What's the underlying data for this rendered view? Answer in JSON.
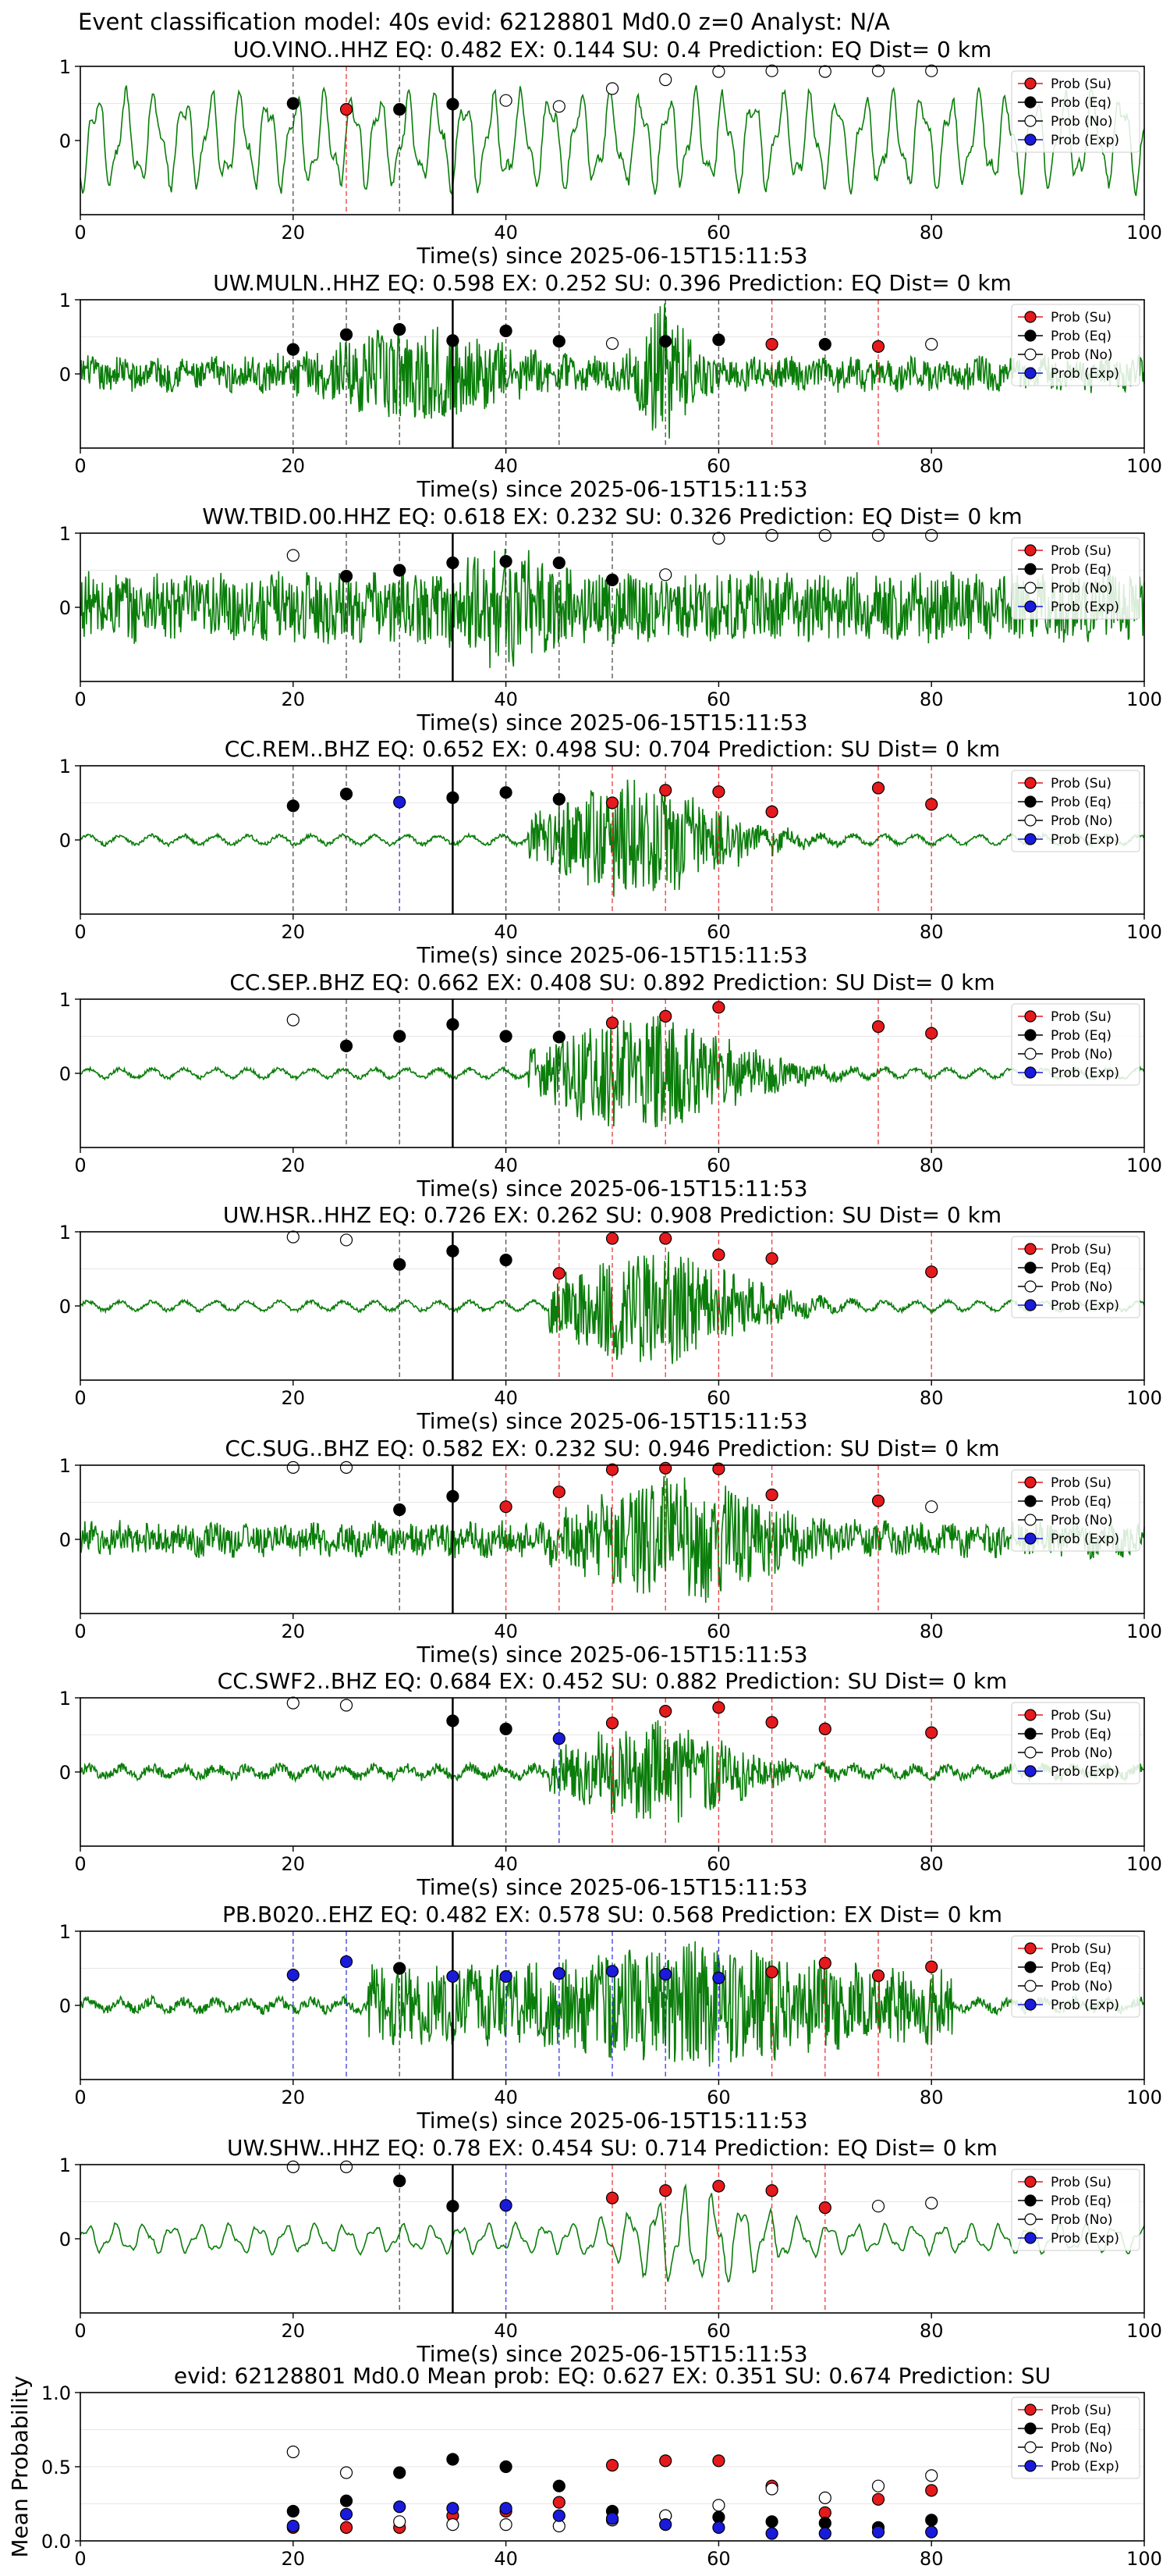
{
  "figure_title": "Event classification model: 40s evid: 62128801 Md0.0 z=0 Analyst: N/A",
  "legend": {
    "su": "Prob (Su)",
    "eq": "Prob (Eq)",
    "no": "Prob (No)",
    "exp": "Prob (Exp)"
  },
  "colors": {
    "su": "#e41a1c",
    "eq": "#000000",
    "no": "#ffffff",
    "exp": "#1a1adb",
    "trace": "#0a7d0a",
    "onset": "#000000"
  },
  "chart_data": [
    {
      "type": "line",
      "title": "UO.VINO..HHZ   EQ: 0.482  EX: 0.144  SU: 0.4   Prediction: EQ    Dist= 0 km",
      "xlabel": "Time(s) since 2025-06-15T15:11:53",
      "xlim": [
        0,
        100
      ],
      "ylim": [
        -1,
        1
      ],
      "xticks": [
        "0",
        "20",
        "40",
        "60",
        "80",
        "100"
      ],
      "yticks": [
        "1",
        "0"
      ],
      "signal_style": "low-frequency oscillation throughout",
      "onset": 35,
      "markers": [
        {
          "x": 20,
          "cls": "eq",
          "p": 0.5
        },
        {
          "x": 25,
          "cls": "su",
          "p": 0.42
        },
        {
          "x": 30,
          "cls": "eq",
          "p": 0.42
        },
        {
          "x": 35,
          "cls": "eq",
          "p": 0.49
        },
        {
          "x": 40,
          "cls": "no",
          "p": 0.54
        },
        {
          "x": 45,
          "cls": "no",
          "p": 0.46
        },
        {
          "x": 50,
          "cls": "no",
          "p": 0.7
        },
        {
          "x": 55,
          "cls": "no",
          "p": 0.82
        },
        {
          "x": 60,
          "cls": "no",
          "p": 0.93
        },
        {
          "x": 65,
          "cls": "no",
          "p": 0.94
        },
        {
          "x": 70,
          "cls": "no",
          "p": 0.93
        },
        {
          "x": 75,
          "cls": "no",
          "p": 0.94
        },
        {
          "x": 80,
          "cls": "no",
          "p": 0.94
        }
      ]
    },
    {
      "type": "line",
      "title": "UW.MULN..HHZ   EQ: 0.598  EX: 0.252  SU: 0.396   Prediction: EQ    Dist= 0 km",
      "xlabel": "Time(s) since 2025-06-15T15:11:53",
      "xlim": [
        0,
        100
      ],
      "ylim": [
        -1,
        1
      ],
      "xticks": [
        "0",
        "20",
        "40",
        "60",
        "80",
        "100"
      ],
      "yticks": [
        "1",
        "0"
      ],
      "signal_style": "noisy with bursts near 20-45 s and 55 s",
      "onset": 35,
      "markers": [
        {
          "x": 20,
          "cls": "eq",
          "p": 0.33
        },
        {
          "x": 25,
          "cls": "eq",
          "p": 0.53
        },
        {
          "x": 30,
          "cls": "eq",
          "p": 0.6
        },
        {
          "x": 35,
          "cls": "eq",
          "p": 0.45
        },
        {
          "x": 40,
          "cls": "eq",
          "p": 0.58
        },
        {
          "x": 45,
          "cls": "eq",
          "p": 0.44
        },
        {
          "x": 50,
          "cls": "no",
          "p": 0.41
        },
        {
          "x": 55,
          "cls": "eq",
          "p": 0.44
        },
        {
          "x": 60,
          "cls": "eq",
          "p": 0.46
        },
        {
          "x": 65,
          "cls": "su",
          "p": 0.4
        },
        {
          "x": 70,
          "cls": "eq",
          "p": 0.4
        },
        {
          "x": 75,
          "cls": "su",
          "p": 0.37
        },
        {
          "x": 80,
          "cls": "no",
          "p": 0.4
        }
      ]
    },
    {
      "type": "line",
      "title": "WW.TBID.00.HHZ   EQ: 0.618  EX: 0.232  SU: 0.326   Prediction: EQ    Dist= 0 km",
      "xlabel": "Time(s) since 2025-06-15T15:11:53",
      "xlim": [
        0,
        100
      ],
      "ylim": [
        -1,
        1
      ],
      "xticks": [
        "0",
        "20",
        "40",
        "60",
        "80",
        "100"
      ],
      "yticks": [
        "1",
        "0"
      ],
      "signal_style": "broadband noise with burst near 40 s",
      "onset": 35,
      "markers": [
        {
          "x": 20,
          "cls": "no",
          "p": 0.7
        },
        {
          "x": 25,
          "cls": "eq",
          "p": 0.42
        },
        {
          "x": 30,
          "cls": "eq",
          "p": 0.5
        },
        {
          "x": 35,
          "cls": "eq",
          "p": 0.6
        },
        {
          "x": 40,
          "cls": "eq",
          "p": 0.62
        },
        {
          "x": 45,
          "cls": "eq",
          "p": 0.6
        },
        {
          "x": 50,
          "cls": "eq",
          "p": 0.37
        },
        {
          "x": 55,
          "cls": "no",
          "p": 0.44
        },
        {
          "x": 60,
          "cls": "no",
          "p": 0.93
        },
        {
          "x": 65,
          "cls": "no",
          "p": 0.97
        },
        {
          "x": 70,
          "cls": "no",
          "p": 0.97
        },
        {
          "x": 75,
          "cls": "no",
          "p": 0.97
        },
        {
          "x": 80,
          "cls": "no",
          "p": 0.97
        }
      ]
    },
    {
      "type": "line",
      "title": "CC.REM..BHZ   EQ: 0.652  EX: 0.498  SU: 0.704   Prediction: SU    Dist= 0 km",
      "xlabel": "Time(s) since 2025-06-15T15:11:53",
      "xlim": [
        0,
        100
      ],
      "ylim": [
        -1,
        1
      ],
      "xticks": [
        "0",
        "20",
        "40",
        "60",
        "80",
        "100"
      ],
      "yticks": [
        "1",
        "0"
      ],
      "signal_style": "quiet then emergent signal 42-75 s",
      "onset": 35,
      "markers": [
        {
          "x": 20,
          "cls": "eq",
          "p": 0.46
        },
        {
          "x": 25,
          "cls": "eq",
          "p": 0.62
        },
        {
          "x": 30,
          "cls": "exp",
          "p": 0.51
        },
        {
          "x": 35,
          "cls": "eq",
          "p": 0.57
        },
        {
          "x": 40,
          "cls": "eq",
          "p": 0.64
        },
        {
          "x": 45,
          "cls": "eq",
          "p": 0.55
        },
        {
          "x": 50,
          "cls": "su",
          "p": 0.5
        },
        {
          "x": 55,
          "cls": "su",
          "p": 0.67
        },
        {
          "x": 60,
          "cls": "su",
          "p": 0.65
        },
        {
          "x": 65,
          "cls": "su",
          "p": 0.38
        },
        {
          "x": 75,
          "cls": "su",
          "p": 0.7
        },
        {
          "x": 80,
          "cls": "su",
          "p": 0.48
        }
      ]
    },
    {
      "type": "line",
      "title": "CC.SEP..BHZ   EQ: 0.662  EX: 0.408  SU: 0.892   Prediction: SU    Dist= 0 km",
      "xlabel": "Time(s) since 2025-06-15T15:11:53",
      "xlim": [
        0,
        100
      ],
      "ylim": [
        -1,
        1
      ],
      "xticks": [
        "0",
        "20",
        "40",
        "60",
        "80",
        "100"
      ],
      "yticks": [
        "1",
        "0"
      ],
      "signal_style": "quiet then emergent signal 42-78 s",
      "onset": 35,
      "markers": [
        {
          "x": 20,
          "cls": "no",
          "p": 0.72
        },
        {
          "x": 25,
          "cls": "eq",
          "p": 0.37
        },
        {
          "x": 30,
          "cls": "eq",
          "p": 0.5
        },
        {
          "x": 35,
          "cls": "eq",
          "p": 0.66
        },
        {
          "x": 40,
          "cls": "eq",
          "p": 0.5
        },
        {
          "x": 45,
          "cls": "eq",
          "p": 0.49
        },
        {
          "x": 50,
          "cls": "su",
          "p": 0.68
        },
        {
          "x": 55,
          "cls": "su",
          "p": 0.77
        },
        {
          "x": 60,
          "cls": "su",
          "p": 0.89
        },
        {
          "x": 75,
          "cls": "su",
          "p": 0.63
        },
        {
          "x": 80,
          "cls": "su",
          "p": 0.54
        }
      ]
    },
    {
      "type": "line",
      "title": "UW.HSR..HHZ   EQ: 0.726  EX: 0.262  SU: 0.908   Prediction: SU    Dist= 0 km",
      "xlabel": "Time(s) since 2025-06-15T15:11:53",
      "xlim": [
        0,
        100
      ],
      "ylim": [
        -1,
        1
      ],
      "xticks": [
        "0",
        "20",
        "40",
        "60",
        "80",
        "100"
      ],
      "yticks": [
        "1",
        "0"
      ],
      "signal_style": "quiet then emergent signal 44-75 s",
      "onset": 35,
      "markers": [
        {
          "x": 20,
          "cls": "no",
          "p": 0.93
        },
        {
          "x": 25,
          "cls": "no",
          "p": 0.89
        },
        {
          "x": 30,
          "cls": "eq",
          "p": 0.56
        },
        {
          "x": 35,
          "cls": "eq",
          "p": 0.74
        },
        {
          "x": 40,
          "cls": "eq",
          "p": 0.62
        },
        {
          "x": 45,
          "cls": "su",
          "p": 0.44
        },
        {
          "x": 50,
          "cls": "su",
          "p": 0.91
        },
        {
          "x": 55,
          "cls": "su",
          "p": 0.91
        },
        {
          "x": 60,
          "cls": "su",
          "p": 0.69
        },
        {
          "x": 65,
          "cls": "su",
          "p": 0.64
        },
        {
          "x": 80,
          "cls": "su",
          "p": 0.46
        }
      ]
    },
    {
      "type": "line",
      "title": "CC.SUG..BHZ   EQ: 0.582  EX: 0.232  SU: 0.946   Prediction: SU    Dist= 0 km",
      "xlabel": "Time(s) since 2025-06-15T15:11:53",
      "xlim": [
        0,
        100
      ],
      "ylim": [
        -1,
        1
      ],
      "xticks": [
        "0",
        "20",
        "40",
        "60",
        "80",
        "100"
      ],
      "yticks": [
        "1",
        "0"
      ],
      "signal_style": "noisy throughout with strong burst 44-72 s",
      "onset": 35,
      "markers": [
        {
          "x": 20,
          "cls": "no",
          "p": 0.97
        },
        {
          "x": 25,
          "cls": "no",
          "p": 0.97
        },
        {
          "x": 30,
          "cls": "eq",
          "p": 0.4
        },
        {
          "x": 35,
          "cls": "eq",
          "p": 0.58
        },
        {
          "x": 40,
          "cls": "su",
          "p": 0.44
        },
        {
          "x": 45,
          "cls": "su",
          "p": 0.64
        },
        {
          "x": 50,
          "cls": "su",
          "p": 0.94
        },
        {
          "x": 55,
          "cls": "su",
          "p": 0.96
        },
        {
          "x": 60,
          "cls": "su",
          "p": 0.95
        },
        {
          "x": 65,
          "cls": "su",
          "p": 0.6
        },
        {
          "x": 75,
          "cls": "su",
          "p": 0.52
        },
        {
          "x": 80,
          "cls": "no",
          "p": 0.44
        }
      ]
    },
    {
      "type": "line",
      "title": "CC.SWF2..BHZ   EQ: 0.684  EX: 0.452  SU: 0.882   Prediction: SU    Dist= 0 km",
      "xlabel": "Time(s) since 2025-06-15T15:11:53",
      "xlim": [
        0,
        100
      ],
      "ylim": [
        -1,
        1
      ],
      "xticks": [
        "0",
        "20",
        "40",
        "60",
        "80",
        "100"
      ],
      "yticks": [
        "1",
        "0"
      ],
      "signal_style": "small oscillation then emergent signal 44-72 s",
      "onset": 35,
      "markers": [
        {
          "x": 20,
          "cls": "no",
          "p": 0.93
        },
        {
          "x": 25,
          "cls": "no",
          "p": 0.9
        },
        {
          "x": 35,
          "cls": "eq",
          "p": 0.69
        },
        {
          "x": 40,
          "cls": "eq",
          "p": 0.58
        },
        {
          "x": 45,
          "cls": "exp",
          "p": 0.45
        },
        {
          "x": 50,
          "cls": "su",
          "p": 0.66
        },
        {
          "x": 55,
          "cls": "su",
          "p": 0.82
        },
        {
          "x": 60,
          "cls": "su",
          "p": 0.87
        },
        {
          "x": 65,
          "cls": "su",
          "p": 0.67
        },
        {
          "x": 70,
          "cls": "su",
          "p": 0.58
        },
        {
          "x": 80,
          "cls": "su",
          "p": 0.53
        }
      ]
    },
    {
      "type": "line",
      "title": "PB.B020..EHZ   EQ: 0.482  EX: 0.578  SU: 0.568   Prediction: EX    Dist= 0 km",
      "xlabel": "Time(s) since 2025-06-15T15:11:53",
      "xlim": [
        0,
        100
      ],
      "ylim": [
        -1,
        1
      ],
      "xticks": [
        "0",
        "20",
        "40",
        "60",
        "80",
        "100"
      ],
      "yticks": [
        "1",
        "0"
      ],
      "signal_style": "small oscillation then signal 27-80 s",
      "onset": 35,
      "markers": [
        {
          "x": 20,
          "cls": "exp",
          "p": 0.41
        },
        {
          "x": 25,
          "cls": "exp",
          "p": 0.59
        },
        {
          "x": 30,
          "cls": "eq",
          "p": 0.5
        },
        {
          "x": 35,
          "cls": "exp",
          "p": 0.39
        },
        {
          "x": 40,
          "cls": "exp",
          "p": 0.39
        },
        {
          "x": 45,
          "cls": "exp",
          "p": 0.43
        },
        {
          "x": 50,
          "cls": "exp",
          "p": 0.46
        },
        {
          "x": 55,
          "cls": "exp",
          "p": 0.42
        },
        {
          "x": 60,
          "cls": "exp",
          "p": 0.37
        },
        {
          "x": 65,
          "cls": "su",
          "p": 0.45
        },
        {
          "x": 70,
          "cls": "su",
          "p": 0.57
        },
        {
          "x": 75,
          "cls": "su",
          "p": 0.4
        },
        {
          "x": 80,
          "cls": "su",
          "p": 0.52
        }
      ]
    },
    {
      "type": "line",
      "title": "UW.SHW..HHZ   EQ: 0.78  EX: 0.454  SU: 0.714   Prediction: EQ    Dist= 0 km",
      "xlabel": "Time(s) since 2025-06-15T15:11:53",
      "xlim": [
        0,
        100
      ],
      "ylim": [
        -1,
        1
      ],
      "xticks": [
        "0",
        "20",
        "40",
        "60",
        "80",
        "100"
      ],
      "yticks": [
        "1",
        "0"
      ],
      "signal_style": "oscillation throughout with burst 48-70 s",
      "onset": 35,
      "markers": [
        {
          "x": 20,
          "cls": "no",
          "p": 0.97
        },
        {
          "x": 25,
          "cls": "no",
          "p": 0.97
        },
        {
          "x": 30,
          "cls": "eq",
          "p": 0.78
        },
        {
          "x": 35,
          "cls": "eq",
          "p": 0.44
        },
        {
          "x": 40,
          "cls": "exp",
          "p": 0.45
        },
        {
          "x": 50,
          "cls": "su",
          "p": 0.55
        },
        {
          "x": 55,
          "cls": "su",
          "p": 0.65
        },
        {
          "x": 60,
          "cls": "su",
          "p": 0.71
        },
        {
          "x": 65,
          "cls": "su",
          "p": 0.65
        },
        {
          "x": 70,
          "cls": "su",
          "p": 0.42
        },
        {
          "x": 75,
          "cls": "no",
          "p": 0.44
        },
        {
          "x": 80,
          "cls": "no",
          "p": 0.48
        }
      ]
    },
    {
      "type": "scatter",
      "title": "evid: 62128801  Md0.0   Mean prob:   EQ: 0.627  EX: 0.351  SU: 0.674   Prediction: SU",
      "xlabel": "",
      "ylabel": "Mean Probability",
      "xlim": [
        0,
        100
      ],
      "ylim": [
        0,
        1
      ],
      "xticks": [
        "0",
        "20",
        "40",
        "60",
        "80",
        "100"
      ],
      "yticks": [
        "1.0",
        "0.5",
        "0.0"
      ],
      "series": [
        {
          "name": "Prob (Su)",
          "cls": "su",
          "x": [
            20,
            25,
            30,
            35,
            40,
            45,
            50,
            55,
            60,
            65,
            70,
            75,
            80
          ],
          "values": [
            0.09,
            0.09,
            0.09,
            0.17,
            0.2,
            0.26,
            0.51,
            0.54,
            0.54,
            0.37,
            0.19,
            0.28,
            0.34
          ]
        },
        {
          "name": "Prob (Eq)",
          "cls": "eq",
          "x": [
            20,
            25,
            30,
            35,
            40,
            45,
            50,
            55,
            60,
            65,
            70,
            75,
            80
          ],
          "values": [
            0.2,
            0.27,
            0.46,
            0.55,
            0.5,
            0.37,
            0.2,
            0.17,
            0.16,
            0.13,
            0.12,
            0.09,
            0.14
          ]
        },
        {
          "name": "Prob (No)",
          "cls": "no",
          "x": [
            20,
            25,
            30,
            35,
            40,
            45,
            50,
            55,
            60,
            65,
            70,
            75,
            80
          ],
          "values": [
            0.6,
            0.46,
            0.13,
            0.11,
            0.11,
            0.1,
            0.14,
            0.17,
            0.24,
            0.35,
            0.29,
            0.37,
            0.44
          ]
        },
        {
          "name": "Prob (Exp)",
          "cls": "exp",
          "x": [
            20,
            25,
            30,
            35,
            40,
            45,
            50,
            55,
            60,
            65,
            70,
            75,
            80
          ],
          "values": [
            0.1,
            0.18,
            0.23,
            0.22,
            0.22,
            0.17,
            0.15,
            0.11,
            0.09,
            0.05,
            0.05,
            0.06,
            0.06
          ]
        }
      ]
    }
  ]
}
